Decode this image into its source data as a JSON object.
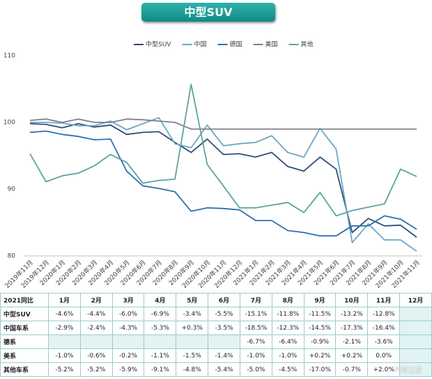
{
  "chart_data": {
    "type": "line",
    "title": "中型SUV",
    "categories": [
      "2019年11月",
      "2019年12月",
      "2020年1月",
      "2020年2月",
      "2020年3月",
      "2020年4月",
      "2020年5月",
      "2020年6月",
      "2020年7月",
      "2020年8月",
      "2020年9月",
      "2020年10月",
      "2020年11月",
      "2020年12月",
      "2021年1月",
      "2021年2月",
      "2021年3月",
      "2021年4月",
      "2021年5月",
      "2021年6月",
      "2021年7月",
      "2021年8月",
      "2021年9月",
      "2021年10月",
      "2021年11月"
    ],
    "series": [
      {
        "name": "中型SUV",
        "color": "#2f4b7c",
        "values": [
          99.8,
          99.7,
          99.2,
          99.8,
          99.3,
          99.6,
          98.2,
          98.5,
          98.6,
          97,
          95.5,
          97.5,
          95.2,
          95.3,
          94.8,
          95.5,
          93.4,
          92.7,
          94.8,
          93,
          83.5,
          85.6,
          84.5,
          84.6,
          82.8
        ]
      },
      {
        "name": "中国",
        "color": "#6aa7c0",
        "values": [
          100,
          100,
          99.9,
          99.5,
          99.5,
          100.2,
          98.9,
          99.8,
          100.7,
          96.8,
          96.2,
          99.6,
          96.5,
          96.8,
          97,
          98,
          95.5,
          94.8,
          99.1,
          96,
          82,
          84.8,
          82.4,
          82.4,
          80.7
        ]
      },
      {
        "name": "德国",
        "color": "#2e6fae",
        "values": [
          98.5,
          98.7,
          98.2,
          97.9,
          97.4,
          97.5,
          92.7,
          90.5,
          90.1,
          89.6,
          86.7,
          87.2,
          87.1,
          86.9,
          85.3,
          85.3,
          83.8,
          83.5,
          83,
          83,
          84.5,
          84.5,
          86,
          85.5,
          84
        ]
      },
      {
        "name": "美国",
        "color": "#7f7f8c",
        "values": [
          100.3,
          100.5,
          100,
          100.5,
          100,
          100,
          100.5,
          100.4,
          100.2,
          100,
          99,
          99,
          99,
          99,
          99,
          99,
          99,
          99,
          99,
          99,
          99,
          99,
          99,
          99,
          99
        ]
      },
      {
        "name": "其他",
        "color": "#5aa39f",
        "values": [
          95.3,
          91.1,
          92,
          92.4,
          93.5,
          95.2,
          94,
          90.9,
          91.3,
          91.5,
          105.7,
          93.7,
          90.5,
          87.2,
          87.2,
          87.6,
          88,
          86.5,
          89.5,
          86,
          86.8,
          87.3,
          87.8,
          93,
          91.9
        ]
      }
    ],
    "ylim": [
      80,
      110
    ],
    "yticks": [
      80,
      90,
      100,
      110
    ],
    "grid": false,
    "legend": "top"
  },
  "table": {
    "header": [
      "2021同比",
      "1月",
      "2月",
      "3月",
      "4月",
      "5月",
      "6月",
      "7月",
      "8月",
      "9月",
      "10月",
      "11月",
      "12月"
    ],
    "rows": [
      [
        "中型SUV",
        "-4.6%",
        "-4.4%",
        "-6.0%",
        "-6.9%",
        "-3.4%",
        "-5.5%",
        "-15.1%",
        "-11.8%",
        "-11.5%",
        "-13.2%",
        "-12.8%",
        null
      ],
      [
        "中国车系",
        "-2.9%",
        "-2.4%",
        "-4.3%",
        "-5.3%",
        "+0.3%",
        "-3.5%",
        "-18.5%",
        "-12.3%",
        "-14.5%",
        "-17.3%",
        "-16.4%",
        null
      ],
      [
        "德系",
        null,
        null,
        null,
        null,
        null,
        null,
        "-6.7%",
        "-6.4%",
        "-0.9%",
        "-2.1%",
        "-3.6%",
        null
      ],
      [
        "美系",
        "-1.0%",
        "-0.6%",
        "-0.2%",
        "-1.1%",
        "-1.5%",
        "-1.4%",
        "-1.0%",
        "-1.0%",
        "+0.2%",
        "+0.2%",
        "0.0%",
        null
      ],
      [
        "其他车系",
        "-5.2%",
        "-5.2%",
        "-5.9%",
        "-9.1%",
        "-4.8%",
        "-5.4%",
        "-5.0%",
        "-4.5%",
        "-17.0%",
        "-0.7%",
        "+2.0%",
        null
      ]
    ]
  },
  "watermark": "汽车之家"
}
